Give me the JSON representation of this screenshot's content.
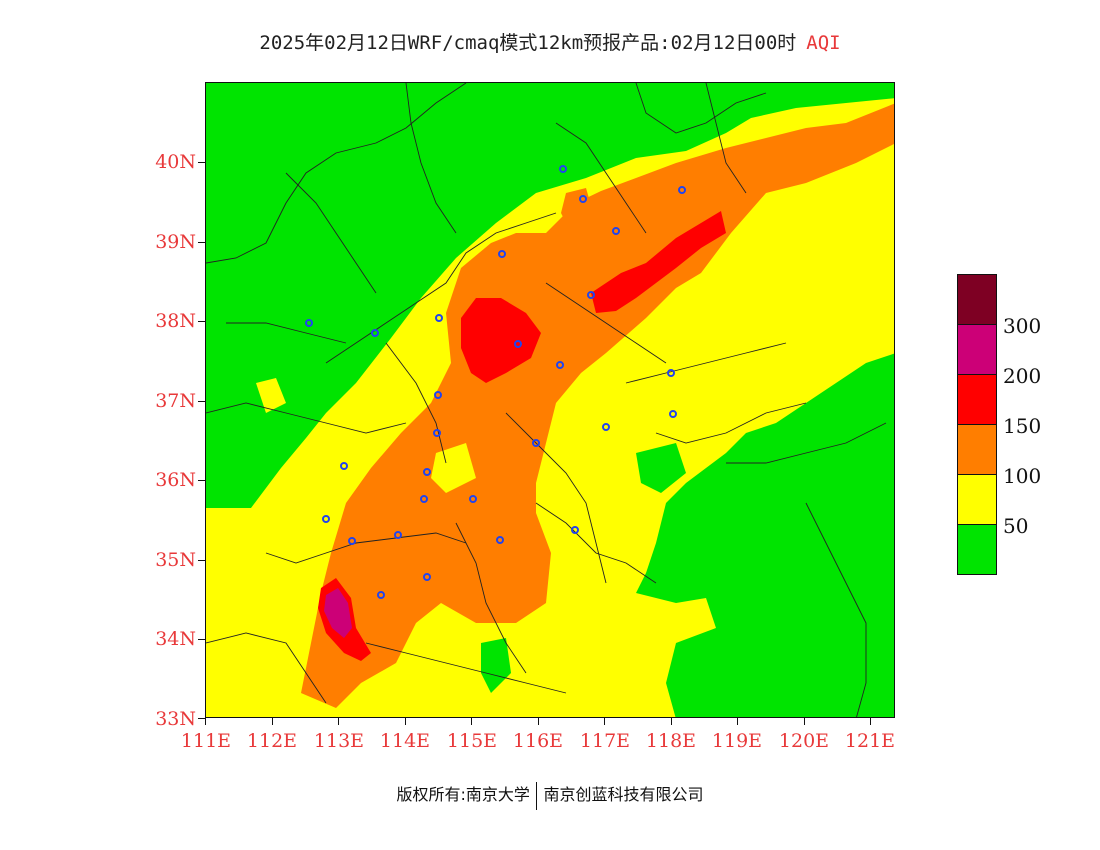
{
  "header": {
    "title": "2025年02月12日WRF/cmaq模式12km预报产品:02月12日00时",
    "variable": "AQI"
  },
  "colors": {
    "label_red": "#e8393a",
    "level_0_50": "#00e400",
    "level_50_100": "#ffff00",
    "level_100_150": "#ff7e00",
    "level_150_200": "#ff0000",
    "level_200_300": "#cc0077",
    "level_300_plus": "#7e0023",
    "station_marker": "#2244ee"
  },
  "map": {
    "lat_labels": [
      "40N",
      "39N",
      "38N",
      "37N",
      "36N",
      "35N",
      "34N",
      "33N"
    ],
    "lon_labels": [
      "111E",
      "112E",
      "113E",
      "114E",
      "115E",
      "116E",
      "117E",
      "118E",
      "119E",
      "120E",
      "121E"
    ],
    "station_marker_icon": "circle-marker-icon"
  },
  "legend": {
    "levels": [
      "300",
      "200",
      "150",
      "100",
      "50"
    ]
  },
  "footer": {
    "copyright_left": "版权所有:南京大学",
    "copyright_right": "南京创蓝科技有限公司"
  }
}
